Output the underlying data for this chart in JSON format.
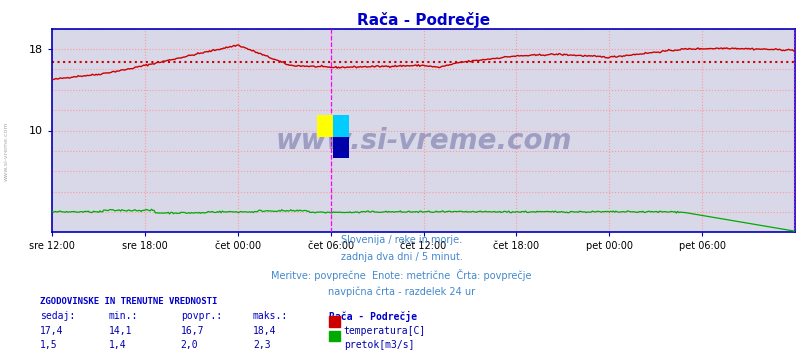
{
  "title": "Rača - Podrečje",
  "title_color": "#0000cc",
  "bg_color": "#d8d8e8",
  "plot_bg_color": "#d8d8e8",
  "grid_color": "#ff9999",
  "temp_color": "#cc0000",
  "flow_color": "#00aa00",
  "avg_line_color": "#cc0000",
  "temp_avg": 16.7,
  "vline_color": "#ff00ff",
  "vline_pos": 216,
  "border_color": "#0000bb",
  "watermark": "www.si-vreme.com",
  "watermark_color": "#1a1a6e",
  "watermark_alpha": 0.3,
  "xlabel_ticks": [
    "sre 12:00",
    "sre 18:00",
    "čet 00:00",
    "čet 06:00",
    "čet 12:00",
    "čet 18:00",
    "pet 00:00",
    "pet 06:00"
  ],
  "tick_positions": [
    0,
    72,
    144,
    216,
    288,
    360,
    432,
    504
  ],
  "total_points": 577,
  "ylim": [
    0,
    20
  ],
  "subtitle_lines": [
    "Slovenija / reke in morje.",
    "zadnja dva dni / 5 minut.",
    "Meritve: povprečne  Enote: metrične  Črta: povprečje",
    "navpična črta - razdelek 24 ur"
  ],
  "subtitle_color": "#4488cc",
  "table_header": "ZGODOVINSKE IN TRENUTNE VREDNOSTI",
  "table_header_color": "#0000cc",
  "col_headers": [
    "sedaj:",
    "min.:",
    "povpr.:",
    "maks.:"
  ],
  "col_header_color": "#0000cc",
  "station_label": "Rača - Podrečje",
  "station_label_color": "#0000cc",
  "temp_row": [
    "17,4",
    "14,1",
    "16,7",
    "18,4"
  ],
  "flow_row": [
    "1,5",
    "1,4",
    "2,0",
    "2,3"
  ],
  "temp_label": "temperatura[C]",
  "flow_label": "pretok[m3/s]",
  "table_color": "#0000aa",
  "left_label": "www.si-vreme.com",
  "left_label_color": "#aaaaaa"
}
